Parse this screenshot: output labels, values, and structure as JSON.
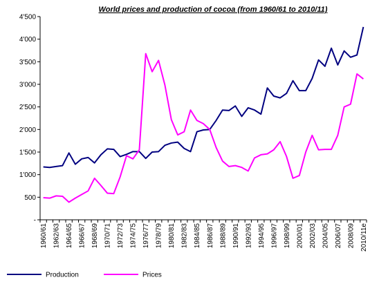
{
  "chart_data": {
    "type": "line",
    "title": "World prices and production of cocoa (from 1960/61 to 2010/11)",
    "categories": [
      "1960/61",
      null,
      "1962/63",
      null,
      "1964/65",
      null,
      "1966/67",
      null,
      "1968/69",
      null,
      "1970/71",
      null,
      "1972/73",
      null,
      "1974/75",
      null,
      "1976/77",
      null,
      "1978/79",
      null,
      "1980/81",
      null,
      "1982/83",
      null,
      "1984/85",
      null,
      "1986/87",
      null,
      "1988/89",
      null,
      "1990/91",
      null,
      "1992/93",
      null,
      "1994/95",
      null,
      "1996/97",
      null,
      "1998/99",
      null,
      "2000/01",
      null,
      "2002/03",
      null,
      "2004/05",
      null,
      "2006/07",
      null,
      "2008/09",
      null,
      "2010/11e"
    ],
    "series": [
      {
        "name": "Production",
        "color": "#000080",
        "values": [
          1170,
          1160,
          1180,
          1200,
          1480,
          1230,
          1350,
          1380,
          1260,
          1440,
          1570,
          1560,
          1400,
          1450,
          1510,
          1510,
          1360,
          1500,
          1510,
          1650,
          1700,
          1720,
          1580,
          1510,
          1950,
          1990,
          2000,
          2200,
          2430,
          2420,
          2520,
          2290,
          2480,
          2430,
          2340,
          2920,
          2740,
          2700,
          2800,
          3080,
          2860,
          2860,
          3130,
          3540,
          3400,
          3800,
          3430,
          3740,
          3600,
          3650,
          4270
        ]
      },
      {
        "name": "Prices",
        "color": "#ff00ff",
        "values": [
          490,
          480,
          530,
          520,
          390,
          480,
          560,
          640,
          920,
          760,
          590,
          580,
          950,
          1420,
          1350,
          1550,
          3680,
          3280,
          3530,
          2980,
          2220,
          1880,
          1950,
          2430,
          2200,
          2130,
          2000,
          1600,
          1300,
          1180,
          1200,
          1160,
          1080,
          1370,
          1440,
          1460,
          1550,
          1730,
          1400,
          920,
          980,
          1500,
          1870,
          1550,
          1560,
          1560,
          1870,
          2500,
          2560,
          3230,
          3120
        ]
      }
    ],
    "ylim": [
      0,
      4500
    ],
    "yticks": [
      {
        "value": 0,
        "label": "-"
      },
      500,
      {
        "value": 1000,
        "label": "1'000"
      },
      {
        "value": 1500,
        "label": "1'500"
      },
      {
        "value": 2000,
        "label": "2'000"
      },
      {
        "value": 2500,
        "label": "2'500"
      },
      {
        "value": 3000,
        "label": "3'000"
      },
      {
        "value": 3500,
        "label": "3'500"
      },
      {
        "value": 4000,
        "label": "4'000"
      },
      {
        "value": 4500,
        "label": "4'500"
      }
    ],
    "grid": false,
    "legend": "bottom"
  }
}
